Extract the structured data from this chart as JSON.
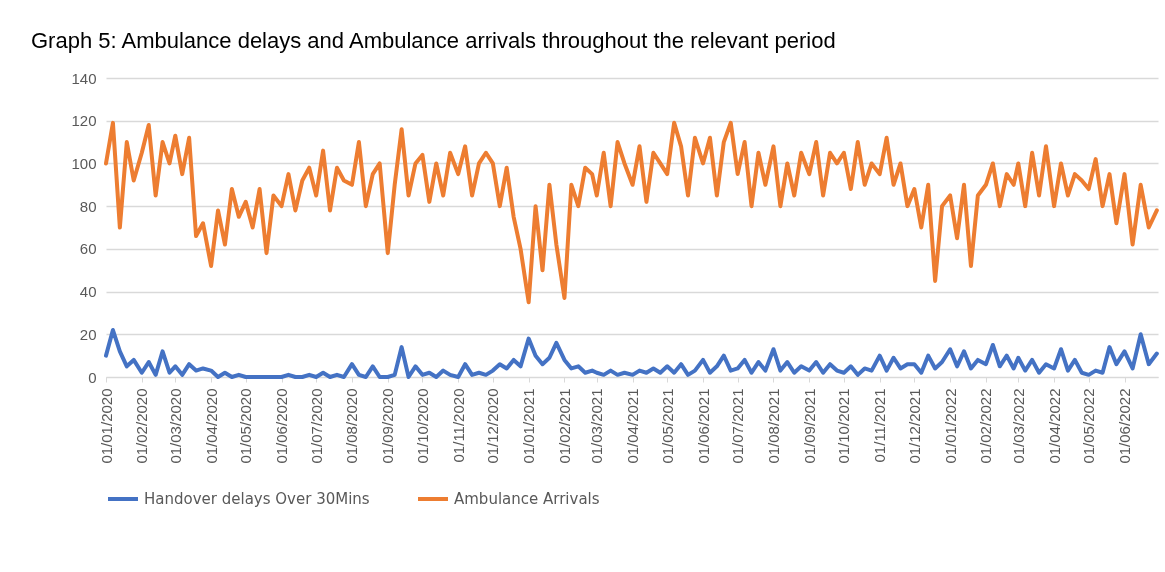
{
  "chart_data": {
    "type": "line",
    "title": "Graph 5:  Ambulance delays and Ambulance arrivals throughout the relevant period",
    "x": [
      "2020-01-01",
      "2020-01-07",
      "2020-01-13",
      "2020-01-19",
      "2020-01-25",
      "2020-02-01",
      "2020-02-07",
      "2020-02-13",
      "2020-02-19",
      "2020-02-25",
      "2020-03-01",
      "2020-03-07",
      "2020-03-13",
      "2020-03-19",
      "2020-03-25",
      "2020-04-01",
      "2020-04-07",
      "2020-04-13",
      "2020-04-19",
      "2020-04-25",
      "2020-05-01",
      "2020-05-07",
      "2020-05-13",
      "2020-05-19",
      "2020-05-25",
      "2020-06-01",
      "2020-06-07",
      "2020-06-13",
      "2020-06-19",
      "2020-06-25",
      "2020-07-01",
      "2020-07-07",
      "2020-07-13",
      "2020-07-19",
      "2020-07-25",
      "2020-08-01",
      "2020-08-07",
      "2020-08-13",
      "2020-08-19",
      "2020-08-25",
      "2020-09-01",
      "2020-09-07",
      "2020-09-13",
      "2020-09-19",
      "2020-09-25",
      "2020-10-01",
      "2020-10-07",
      "2020-10-13",
      "2020-10-19",
      "2020-10-25",
      "2020-11-01",
      "2020-11-07",
      "2020-11-13",
      "2020-11-19",
      "2020-11-25",
      "2020-12-01",
      "2020-12-07",
      "2020-12-13",
      "2020-12-19",
      "2020-12-25",
      "2021-01-01",
      "2021-01-07",
      "2021-01-13",
      "2021-01-19",
      "2021-01-25",
      "2021-02-01",
      "2021-02-07",
      "2021-02-13",
      "2021-02-19",
      "2021-02-25",
      "2021-03-01",
      "2021-03-07",
      "2021-03-13",
      "2021-03-19",
      "2021-03-25",
      "2021-04-01",
      "2021-04-07",
      "2021-04-13",
      "2021-04-19",
      "2021-04-25",
      "2021-05-01",
      "2021-05-07",
      "2021-05-13",
      "2021-05-19",
      "2021-05-25",
      "2021-06-01",
      "2021-06-07",
      "2021-06-13",
      "2021-06-19",
      "2021-06-25",
      "2021-07-01",
      "2021-07-07",
      "2021-07-13",
      "2021-07-19",
      "2021-07-25",
      "2021-08-01",
      "2021-08-07",
      "2021-08-13",
      "2021-08-19",
      "2021-08-25",
      "2021-09-01",
      "2021-09-07",
      "2021-09-13",
      "2021-09-19",
      "2021-09-25",
      "2021-10-01",
      "2021-10-07",
      "2021-10-13",
      "2021-10-19",
      "2021-10-25",
      "2021-11-01",
      "2021-11-07",
      "2021-11-13",
      "2021-11-19",
      "2021-11-25",
      "2021-12-01",
      "2021-12-07",
      "2021-12-13",
      "2021-12-19",
      "2021-12-25",
      "2022-01-01",
      "2022-01-07",
      "2022-01-13",
      "2022-01-19",
      "2022-01-25",
      "2022-02-01",
      "2022-02-07",
      "2022-02-13",
      "2022-02-19",
      "2022-02-25",
      "2022-03-01",
      "2022-03-07",
      "2022-03-13",
      "2022-03-19",
      "2022-03-25",
      "2022-04-01",
      "2022-04-07",
      "2022-04-13",
      "2022-04-19",
      "2022-04-25",
      "2022-05-01",
      "2022-05-07",
      "2022-05-13",
      "2022-05-19",
      "2022-05-25",
      "2022-06-01",
      "2022-06-08",
      "2022-06-15",
      "2022-06-22",
      "2022-06-29"
    ],
    "series": [
      {
        "name": "Handover delays Over 30Mins",
        "color": "#4472c4",
        "values": [
          10,
          22,
          12,
          5,
          8,
          2,
          7,
          1,
          12,
          2,
          5,
          1,
          6,
          3,
          4,
          3,
          0,
          2,
          0,
          1,
          0,
          0,
          0,
          0,
          0,
          0,
          1,
          0,
          0,
          1,
          0,
          2,
          0,
          1,
          0,
          6,
          1,
          0,
          5,
          0,
          0,
          1,
          14,
          0,
          5,
          1,
          2,
          0,
          3,
          1,
          0,
          6,
          1,
          2,
          1,
          3,
          6,
          4,
          8,
          5,
          18,
          10,
          6,
          9,
          16,
          8,
          4,
          5,
          2,
          3,
          2,
          1,
          3,
          1,
          2,
          1,
          3,
          2,
          4,
          2,
          5,
          2,
          6,
          1,
          3,
          8,
          2,
          5,
          10,
          3,
          4,
          8,
          2,
          7,
          3,
          13,
          3,
          7,
          2,
          5,
          3,
          7,
          2,
          6,
          3,
          2,
          5,
          1,
          4,
          3,
          10,
          3,
          9,
          4,
          6,
          6,
          2,
          10,
          4,
          7,
          13,
          5,
          12,
          4,
          8,
          6,
          15,
          5,
          10,
          4,
          9,
          3,
          8,
          2,
          6,
          4,
          13,
          3,
          8,
          2,
          1,
          3,
          2,
          14,
          6,
          12,
          4,
          20,
          6,
          11
        ]
      },
      {
        "name": "Ambulance Arrivals",
        "color": "#ed7d31",
        "values": [
          100,
          119,
          70,
          110,
          92,
          105,
          118,
          85,
          110,
          100,
          113,
          95,
          112,
          66,
          72,
          52,
          78,
          62,
          88,
          75,
          82,
          70,
          88,
          58,
          85,
          80,
          95,
          78,
          92,
          98,
          85,
          106,
          78,
          98,
          92,
          90,
          110,
          80,
          95,
          100,
          58,
          90,
          116,
          85,
          100,
          104,
          82,
          100,
          85,
          105,
          95,
          108,
          85,
          100,
          105,
          100,
          80,
          98,
          75,
          60,
          35,
          80,
          50,
          90,
          62,
          37,
          90,
          80,
          98,
          95,
          85,
          105,
          80,
          110,
          100,
          90,
          108,
          82,
          105,
          100,
          95,
          119,
          108,
          85,
          112,
          100,
          112,
          85,
          110,
          119,
          95,
          110,
          80,
          105,
          90,
          108,
          80,
          100,
          85,
          105,
          95,
          110,
          85,
          105,
          100,
          105,
          88,
          110,
          90,
          100,
          95,
          112,
          90,
          100,
          80,
          88,
          70,
          90,
          45,
          80,
          85,
          65,
          90,
          52,
          85,
          90,
          100,
          80,
          95,
          90,
          100,
          80,
          105,
          85,
          108,
          80,
          100,
          85,
          95,
          92,
          88,
          102,
          80,
          95,
          72,
          95,
          62,
          90,
          70,
          78
        ]
      }
    ],
    "xlim": [
      "2020-01-01",
      "2022-06-30"
    ],
    "xticks": [
      {
        "value": "2020-01-01",
        "label": "01/01/2020"
      },
      {
        "value": "2020-02-01",
        "label": "01/02/2020"
      },
      {
        "value": "2020-03-01",
        "label": "01/03/2020"
      },
      {
        "value": "2020-04-01",
        "label": "01/04/2020"
      },
      {
        "value": "2020-05-01",
        "label": "01/05/2020"
      },
      {
        "value": "2020-06-01",
        "label": "01/06/2020"
      },
      {
        "value": "2020-07-01",
        "label": "01/07/2020"
      },
      {
        "value": "2020-08-01",
        "label": "01/08/2020"
      },
      {
        "value": "2020-09-01",
        "label": "01/09/2020"
      },
      {
        "value": "2020-10-01",
        "label": "01/10/2020"
      },
      {
        "value": "2020-11-01",
        "label": "01/11/2020"
      },
      {
        "value": "2020-12-01",
        "label": "01/12/2020"
      },
      {
        "value": "2021-01-01",
        "label": "01/01/2021"
      },
      {
        "value": "2021-02-01",
        "label": "01/02/2021"
      },
      {
        "value": "2021-03-01",
        "label": "01/03/2021"
      },
      {
        "value": "2021-04-01",
        "label": "01/04/2021"
      },
      {
        "value": "2021-05-01",
        "label": "01/05/2021"
      },
      {
        "value": "2021-06-01",
        "label": "01/06/2021"
      },
      {
        "value": "2021-07-01",
        "label": "01/07/2021"
      },
      {
        "value": "2021-08-01",
        "label": "01/08/2021"
      },
      {
        "value": "2021-09-01",
        "label": "01/09/2021"
      },
      {
        "value": "2021-10-01",
        "label": "01/10/2021"
      },
      {
        "value": "2021-11-01",
        "label": "01/11/2021"
      },
      {
        "value": "2021-12-01",
        "label": "01/12/2021"
      },
      {
        "value": "2022-01-01",
        "label": "01/01/2022"
      },
      {
        "value": "2022-02-01",
        "label": "01/02/2022"
      },
      {
        "value": "2022-03-01",
        "label": "01/03/2022"
      },
      {
        "value": "2022-04-01",
        "label": "01/04/2022"
      },
      {
        "value": "2022-05-01",
        "label": "01/05/2022"
      },
      {
        "value": "2022-06-01",
        "label": "01/06/2022"
      }
    ],
    "ylim": [
      0,
      140
    ],
    "yticks": [
      0,
      20,
      40,
      60,
      80,
      100,
      120,
      140
    ],
    "grid": "y",
    "legend": "bottom"
  }
}
